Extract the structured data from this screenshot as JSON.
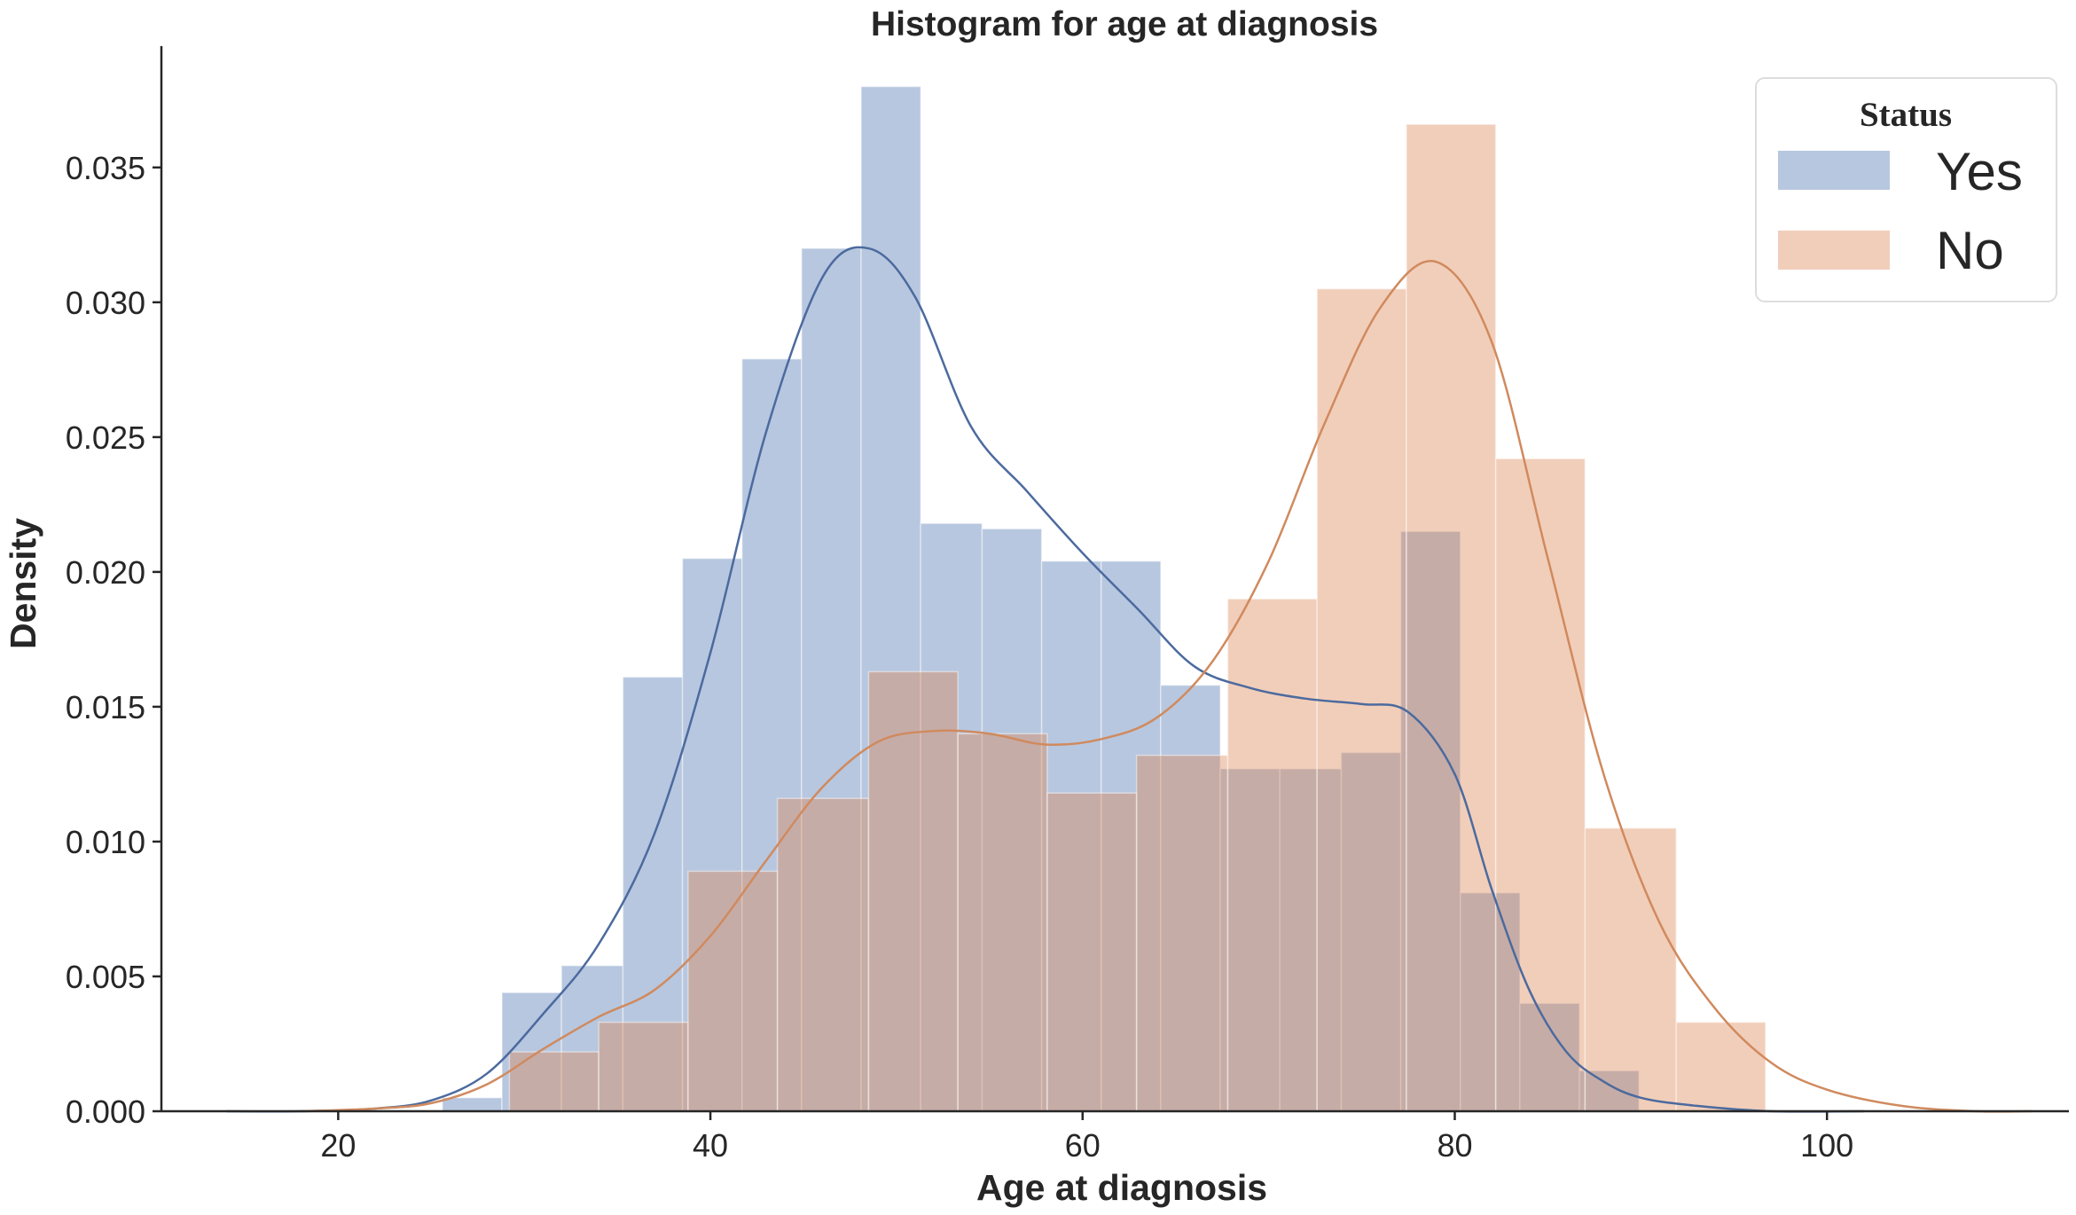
{
  "chart_data": {
    "type": "bar",
    "title": "Histogram for age at diagnosis",
    "xlabel": "Age at diagnosis",
    "ylabel": "Density",
    "xlim": [
      10.5,
      113
    ],
    "ylim": [
      0,
      0.0395
    ],
    "xticks": [
      20,
      40,
      60,
      80,
      100
    ],
    "xtick_labels": [
      "20",
      "40",
      "60",
      "80",
      "100"
    ],
    "yticks": [
      0.0,
      0.005,
      0.01,
      0.015,
      0.02,
      0.025,
      0.03,
      0.035
    ],
    "ytick_labels": [
      "0.000",
      "0.005",
      "0.010",
      "0.015",
      "0.020",
      "0.025",
      "0.030",
      "0.035"
    ],
    "grid": false,
    "legend": {
      "title": "Status",
      "placement": "top-right"
    },
    "series": [
      {
        "name": "Yes",
        "color": "#4C72B0",
        "bin_edges": [
          25.6,
          28.8,
          32.0,
          35.3,
          38.5,
          41.7,
          44.9,
          48.1,
          51.3,
          54.6,
          57.8,
          61.0,
          64.2,
          67.4,
          70.6,
          73.9,
          77.1,
          80.3,
          83.5,
          86.7,
          89.9
        ],
        "values": [
          0.0005,
          0.0044,
          0.0054,
          0.0161,
          0.0205,
          0.0279,
          0.032,
          0.038,
          0.0218,
          0.0216,
          0.0204,
          0.0204,
          0.0158,
          0.0127,
          0.0127,
          0.0133,
          0.0215,
          0.0081,
          0.004,
          0.0015
        ],
        "kde": {
          "x": [
            14,
            18,
            22,
            25,
            28,
            31,
            34,
            37,
            40,
            43,
            46,
            48.5,
            51,
            54,
            57,
            60,
            63,
            66,
            69,
            72,
            75,
            77.5,
            80,
            82,
            84,
            86,
            88,
            90,
            93,
            97,
            102
          ],
          "y": [
            0.0,
            0.0,
            0.0001,
            0.0004,
            0.0014,
            0.0036,
            0.0062,
            0.0103,
            0.017,
            0.0252,
            0.0309,
            0.032,
            0.0302,
            0.0254,
            0.023,
            0.0207,
            0.0186,
            0.0165,
            0.0157,
            0.0153,
            0.0151,
            0.0148,
            0.0125,
            0.0082,
            0.0045,
            0.0022,
            0.0011,
            0.0005,
            0.0002,
            0.0,
            0.0
          ]
        }
      },
      {
        "name": "No",
        "color": "#DD8452",
        "bin_edges": [
          29.2,
          34.0,
          38.8,
          43.6,
          48.5,
          53.3,
          58.1,
          62.9,
          67.8,
          72.6,
          77.4,
          82.2,
          87.0,
          91.9,
          96.7
        ],
        "values": [
          0.0022,
          0.0033,
          0.0089,
          0.0116,
          0.0163,
          0.014,
          0.0118,
          0.0132,
          0.019,
          0.0305,
          0.0366,
          0.0242,
          0.0105,
          0.0033
        ],
        "kde": {
          "x": [
            18,
            22,
            25,
            28,
            31,
            34,
            37,
            40,
            43,
            46,
            49,
            52,
            55,
            58,
            61,
            64,
            67,
            70,
            73,
            76,
            79,
            82,
            85,
            88,
            91,
            94,
            97,
            100,
            104,
            108,
            111
          ],
          "y": [
            0.0,
            0.0001,
            0.0003,
            0.001,
            0.0023,
            0.0035,
            0.0045,
            0.0065,
            0.0093,
            0.012,
            0.0137,
            0.0141,
            0.014,
            0.0136,
            0.0138,
            0.0146,
            0.0167,
            0.0204,
            0.0255,
            0.0298,
            0.0315,
            0.0285,
            0.0205,
            0.0125,
            0.007,
            0.0038,
            0.0018,
            0.0008,
            0.0002,
            0.0,
            0.0
          ]
        }
      }
    ]
  }
}
